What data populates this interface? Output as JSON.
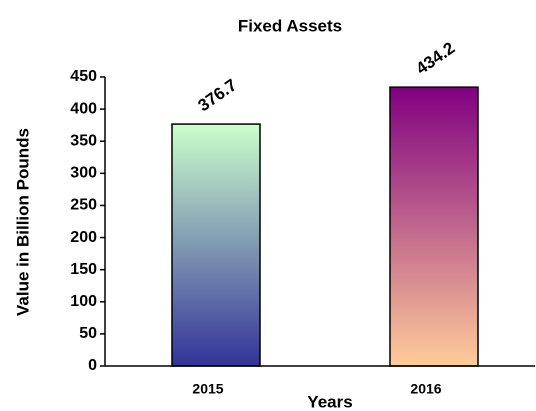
{
  "chart_data": {
    "type": "bar",
    "title": "Fixed Assets",
    "x_label": "Years",
    "y_label": "Value in Billion Pounds",
    "categories": [
      "2015",
      "2016"
    ],
    "values": [
      376.7,
      434.2
    ],
    "gradients": [
      {
        "top": "#ccffcc",
        "bottom": "#333399"
      },
      {
        "top": "#800080",
        "bottom": "#ffcc99"
      }
    ],
    "ylim": [
      0,
      450
    ],
    "yticks": [
      0,
      50,
      100,
      150,
      200,
      250,
      300,
      350,
      400,
      450
    ],
    "grid": false
  }
}
